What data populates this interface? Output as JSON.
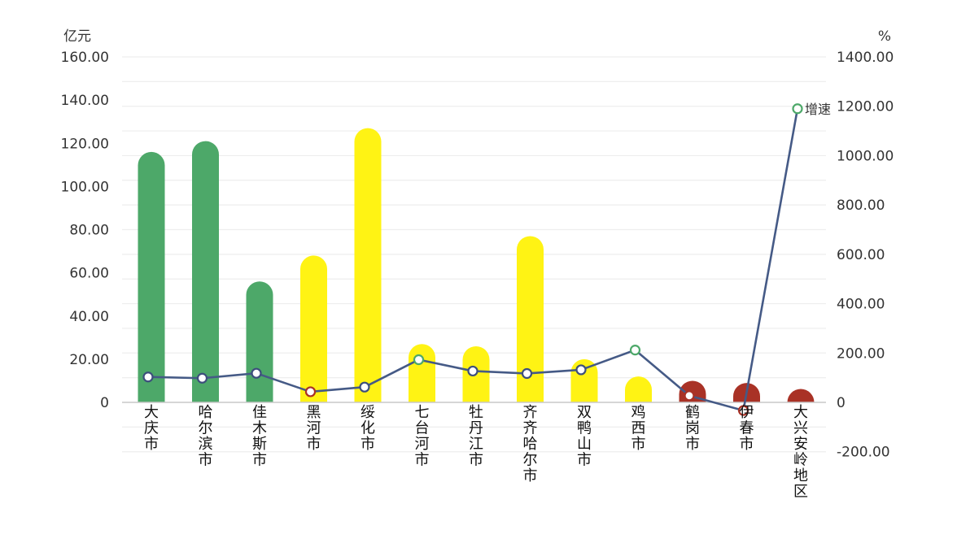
{
  "chart_data": {
    "type": "bar",
    "y_unit_left": "亿元",
    "y_unit_right": "%",
    "left_ticks": [
      "160.00",
      "140.00",
      "120.00",
      "100.00",
      "80.00",
      "60.00",
      "40.00",
      "20.00",
      "0"
    ],
    "right_ticks": [
      "1400.00",
      "1200.00",
      "1000.00",
      "800.00",
      "600.00",
      "400.00",
      "200.00",
      "0",
      "-200.00"
    ],
    "ylim_left": [
      -20,
      140
    ],
    "ylim_right": [
      -200,
      1400
    ],
    "grid": true,
    "categories": [
      "大庆市",
      "哈尔滨市",
      "佳木斯市",
      "黑河市",
      "绥化市",
      "七台河市",
      "牡丹江市",
      "齐齐哈尔市",
      "双鸭山市",
      "鸡西市",
      "鹤岗市",
      "伊春市",
      "大兴安岭地区"
    ],
    "series": [
      {
        "type": "bar",
        "axis": "left",
        "values": [
          116,
          121,
          56,
          68,
          127,
          27,
          26,
          77,
          20,
          12,
          10,
          9,
          3
        ],
        "colors": [
          "#4da869",
          "#4da869",
          "#4da869",
          "#fff314",
          "#fff314",
          "#fff314",
          "#fff314",
          "#fff314",
          "#fff314",
          "#fff314",
          "#a93226",
          "#a93226",
          "#a93226"
        ]
      },
      {
        "type": "line",
        "axis": "right",
        "name": "增速",
        "values": [
          103,
          98,
          118,
          43,
          62,
          173,
          127,
          117,
          132,
          212,
          27,
          -33,
          1190
        ],
        "marker_colors": [
          "#3d4f7c",
          "#3d4f7c",
          "#3d4f7c",
          "#a93226",
          "#3d4f7c",
          "#4da869",
          "#3d4f7c",
          "#3d4f7c",
          "#3d4f7c",
          "#4da869",
          "#a93226",
          "#a93226",
          "#4da869"
        ],
        "line_color": "#455a86"
      }
    ]
  }
}
